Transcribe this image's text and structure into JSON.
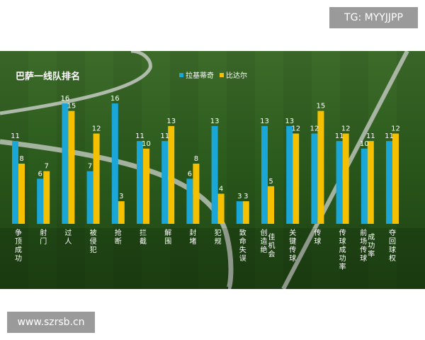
{
  "badges": {
    "top_right": "TG: MYYJJPP",
    "bottom_left": "www.szrsb.cn"
  },
  "colors": {
    "series1": "#1aa7d8",
    "series2": "#f5c000",
    "grass": "#2d5a1d"
  },
  "chart_data": {
    "type": "bar",
    "title": "巴萨一线队排名",
    "categories": [
      "争顶成功",
      "射门",
      "过人",
      "被侵犯",
      "抢断",
      "拦截",
      "解围",
      "封堵",
      "犯规",
      "致命失误",
      "创造绝佳机会",
      "关键传球",
      "传球",
      "传球成功率",
      "前场传球成功率",
      "夺回球权"
    ],
    "series": [
      {
        "name": "拉基蒂奇",
        "values": [
          11,
          6,
          16,
          7,
          16,
          11,
          11,
          6,
          13,
          3,
          13,
          13,
          12,
          11,
          10,
          11
        ]
      },
      {
        "name": "比达尔",
        "values": [
          8,
          7,
          15,
          12,
          3,
          10,
          13,
          8,
          4,
          3,
          5,
          12,
          15,
          12,
          11,
          12
        ]
      }
    ],
    "ylim": [
      0,
      16
    ],
    "legend_position": "top-center",
    "grid": false
  }
}
